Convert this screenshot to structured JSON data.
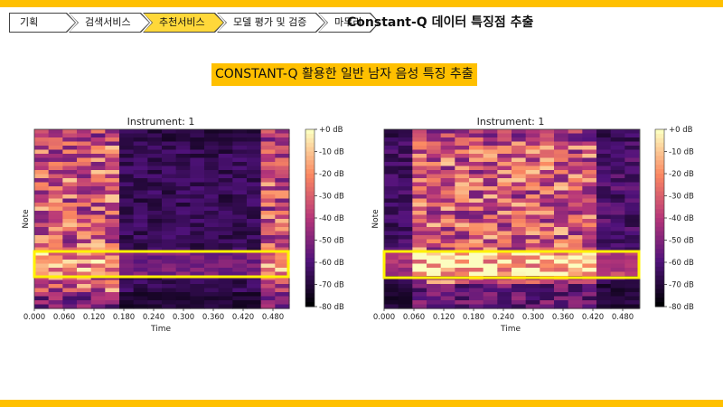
{
  "breadcrumb": {
    "items": [
      {
        "label": "기획",
        "active": false
      },
      {
        "label": "검색서비스",
        "active": false
      },
      {
        "label": "추천서비스",
        "active": true
      },
      {
        "label": "모델 평가 및 검증",
        "active": false
      },
      {
        "label": "마무리",
        "active": false
      }
    ]
  },
  "header": {
    "title": "Constant-Q 데이터 특징점 추출"
  },
  "section": {
    "subtitle": "CONSTANT-Q 활용한 일반 남자 음성 특징 추출"
  },
  "colors": {
    "accent": "#FFC000",
    "highlight": "#FFF200"
  },
  "charts": [
    {
      "title": "Instrument: 1",
      "xlabel": "Time",
      "ylabel": "Note",
      "xticks": [
        "0.000",
        "0.060",
        "0.120",
        "0.180",
        "0.240",
        "0.300",
        "0.360",
        "0.420",
        "0.480"
      ],
      "colorbar_ticks": [
        "+0 dB",
        "-10 dB",
        "-20 dB",
        "-30 dB",
        "-40 dB",
        "-50 dB",
        "-60 dB",
        "-70 dB",
        "-80 dB"
      ]
    },
    {
      "title": "Instrument: 1",
      "xlabel": "Time",
      "ylabel": "Note",
      "xticks": [
        "0.000",
        "0.060",
        "0.120",
        "0.180",
        "0.240",
        "0.300",
        "0.360",
        "0.420",
        "0.480"
      ],
      "colorbar_ticks": [
        "+0 dB",
        "-10 dB",
        "-20 dB",
        "-30 dB",
        "-40 dB",
        "-50 dB",
        "-60 dB",
        "-70 dB",
        "-80 dB"
      ]
    }
  ]
}
